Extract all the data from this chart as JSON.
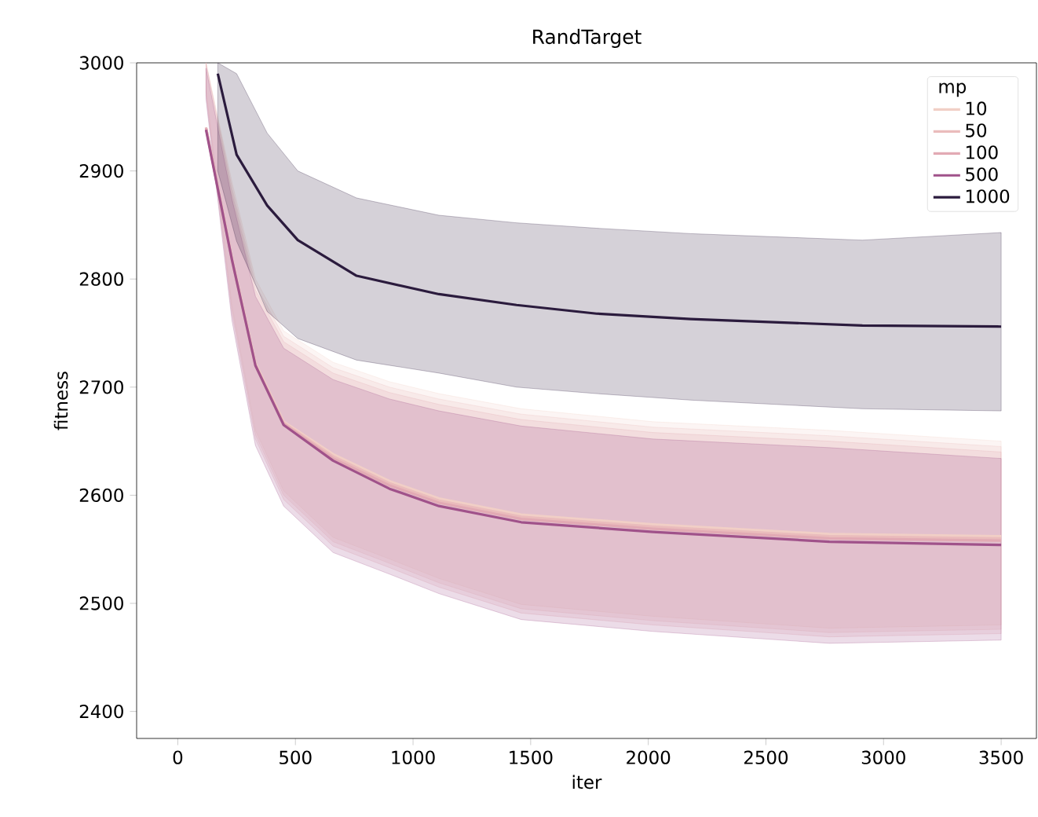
{
  "chart_data": {
    "type": "line",
    "title": "RandTarget",
    "xlabel": "iter",
    "ylabel": "fitness",
    "legend_title": "mp",
    "legend": "top right",
    "grid": false,
    "xlim": [
      -175,
      3650
    ],
    "ylim": [
      2375,
      3000
    ],
    "xticks": [
      0,
      500,
      1000,
      1500,
      2000,
      2500,
      3000,
      3500
    ],
    "yticks": [
      2400,
      2500,
      2600,
      2700,
      2800,
      2900,
      3000
    ],
    "series": [
      {
        "name": "10",
        "color": "#f1cfc6",
        "x": [
          120,
          230,
          330,
          450,
          660,
          900,
          1110,
          1460,
          2020,
          2770,
          3500
        ],
        "values": [
          2940,
          2820,
          2722,
          2668,
          2638,
          2613,
          2597,
          2582,
          2573,
          2564,
          2562
        ],
        "lower": [
          2976,
          2776,
          2660,
          2604,
          2561,
          2541,
          2523,
          2499,
          2488,
          2477,
          2480
        ],
        "upper": [
          3000,
          2890,
          2800,
          2752,
          2723,
          2705,
          2694,
          2680,
          2668,
          2660,
          2650
        ]
      },
      {
        "name": "50",
        "color": "#eabcbc",
        "x": [
          120,
          230,
          330,
          450,
          660,
          900,
          1110,
          1460,
          2020,
          2770,
          3500
        ],
        "values": [
          2940,
          2819,
          2721,
          2667,
          2636,
          2611,
          2595,
          2580,
          2571,
          2562,
          2560
        ],
        "lower": [
          2973,
          2772,
          2656,
          2600,
          2557,
          2537,
          2519,
          2495,
          2484,
          2473,
          2476
        ],
        "upper": [
          3000,
          2885,
          2795,
          2747,
          2718,
          2700,
          2689,
          2675,
          2663,
          2655,
          2645
        ]
      },
      {
        "name": "100",
        "color": "#e2aab4",
        "x": [
          120,
          230,
          330,
          450,
          660,
          900,
          1110,
          1460,
          2020,
          2770,
          3500
        ],
        "values": [
          2940,
          2818,
          2720,
          2666,
          2634,
          2609,
          2593,
          2578,
          2569,
          2560,
          2558
        ],
        "lower": [
          2970,
          2768,
          2652,
          2596,
          2553,
          2533,
          2515,
          2491,
          2480,
          2469,
          2472
        ],
        "upper": [
          3000,
          2880,
          2790,
          2742,
          2713,
          2695,
          2684,
          2670,
          2658,
          2650,
          2640
        ]
      },
      {
        "name": "500",
        "color": "#a0528a",
        "x": [
          120,
          230,
          330,
          450,
          660,
          900,
          1110,
          1460,
          2020,
          2770,
          3500
        ],
        "values": [
          2938,
          2818,
          2720,
          2665,
          2632,
          2606,
          2590,
          2575,
          2566,
          2557,
          2554
        ],
        "lower": [
          2966,
          2762,
          2646,
          2590,
          2547,
          2527,
          2509,
          2485,
          2474,
          2463,
          2466
        ],
        "upper": [
          2995,
          2874,
          2784,
          2736,
          2707,
          2689,
          2678,
          2664,
          2652,
          2644,
          2634
        ]
      },
      {
        "name": "1000",
        "color": "#2b1b3d",
        "x": [
          170,
          250,
          380,
          510,
          760,
          1110,
          1440,
          1780,
          2180,
          2910,
          3500
        ],
        "values": [
          2990,
          2915,
          2868,
          2836,
          2803,
          2786,
          2776,
          2768,
          2763,
          2757,
          2756
        ],
        "lower": [
          2900,
          2835,
          2770,
          2745,
          2725,
          2713,
          2700,
          2694,
          2688,
          2680,
          2678
        ],
        "upper": [
          3000,
          2990,
          2935,
          2900,
          2875,
          2859,
          2852,
          2847,
          2842,
          2836,
          2843
        ]
      }
    ]
  }
}
